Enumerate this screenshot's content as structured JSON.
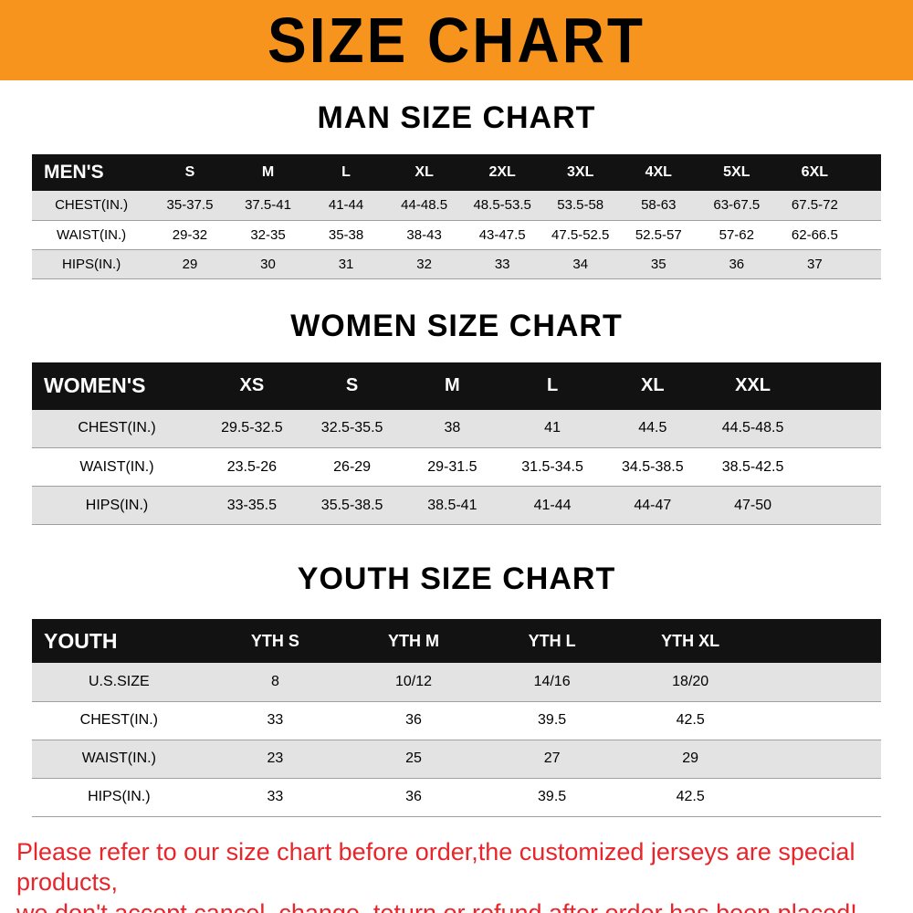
{
  "banner": {
    "title": "SIZE CHART"
  },
  "sections": [
    {
      "heading": "MAN SIZE CHART",
      "table": {
        "label": "MEN'S",
        "columns": [
          "S",
          "M",
          "L",
          "XL",
          "2XL",
          "3XL",
          "4XL",
          "5XL",
          "6XL"
        ],
        "rows": [
          {
            "label": "CHEST(IN.)",
            "values": [
              "35-37.5",
              "37.5-41",
              "41-44",
              "44-48.5",
              "48.5-53.5",
              "53.5-58",
              "58-63",
              "63-67.5",
              "67.5-72"
            ]
          },
          {
            "label": "WAIST(IN.)",
            "values": [
              "29-32",
              "32-35",
              "35-38",
              "38-43",
              "43-47.5",
              "47.5-52.5",
              "52.5-57",
              "57-62",
              "62-66.5"
            ]
          },
          {
            "label": "HIPS(IN.)",
            "values": [
              "29",
              "30",
              "31",
              "32",
              "33",
              "34",
              "35",
              "36",
              "37"
            ]
          }
        ]
      }
    },
    {
      "heading": "WOMEN SIZE CHART",
      "table": {
        "label": "WOMEN'S",
        "columns": [
          "XS",
          "S",
          "M",
          "L",
          "XL",
          "XXL"
        ],
        "rows": [
          {
            "label": "CHEST(IN.)",
            "values": [
              "29.5-32.5",
              "32.5-35.5",
              "38",
              "41",
              "44.5",
              "44.5-48.5"
            ]
          },
          {
            "label": "WAIST(IN.)",
            "values": [
              "23.5-26",
              "26-29",
              "29-31.5",
              "31.5-34.5",
              "34.5-38.5",
              "38.5-42.5"
            ]
          },
          {
            "label": "HIPS(IN.)",
            "values": [
              "33-35.5",
              "35.5-38.5",
              "38.5-41",
              "41-44",
              "44-47",
              "47-50"
            ]
          }
        ]
      }
    },
    {
      "heading": "YOUTH SIZE CHART",
      "table": {
        "label": "YOUTH",
        "columns": [
          "YTH S",
          "YTH M",
          "YTH L",
          "YTH XL"
        ],
        "rows": [
          {
            "label": "U.S.SIZE",
            "values": [
              "8",
              "10/12",
              "14/16",
              "18/20"
            ]
          },
          {
            "label": "CHEST(IN.)",
            "values": [
              "33",
              "36",
              "39.5",
              "42.5"
            ]
          },
          {
            "label": "WAIST(IN.)",
            "values": [
              "23",
              "25",
              "27",
              "29"
            ]
          },
          {
            "label": "HIPS(IN.)",
            "values": [
              "33",
              "36",
              "39.5",
              "42.5"
            ]
          }
        ]
      }
    }
  ],
  "footer": {
    "line1": "Please refer to our size chart before order,the customized jerseys are special products,",
    "line2": "we don't accept cancel, change, teturn or refund after order has been placed!"
  },
  "colors": {
    "banner_orange": "#f7941e",
    "header_black": "#121212",
    "row_gray": "#e3e3e3",
    "note_red": "#e8252a"
  }
}
